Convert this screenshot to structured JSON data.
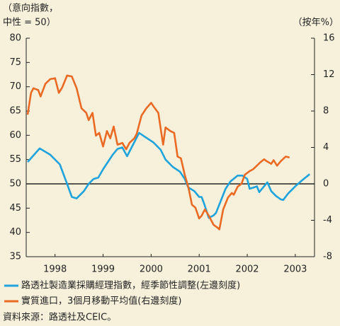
{
  "chart_data": {
    "type": "line",
    "y_label": [
      "（意向指數，",
      "中性 = 50）"
    ],
    "y2_label": "（按年%）",
    "xlim": [
      1997.9,
      2003.9
    ],
    "xticks": [
      {
        "value": 1998.5,
        "label": "1998"
      },
      {
        "value": 1999.5,
        "label": "1999"
      },
      {
        "value": 2000.5,
        "label": "2000"
      },
      {
        "value": 2001.5,
        "label": "2001"
      },
      {
        "value": 2002.5,
        "label": "2002"
      },
      {
        "value": 2003.5,
        "label": "2003"
      }
    ],
    "ylim": [
      35,
      80
    ],
    "yticks": [
      35,
      40,
      45,
      50,
      55,
      60,
      65,
      70,
      75,
      80
    ],
    "y2lim": [
      -8,
      16
    ],
    "y2ticks": [
      -8,
      -4,
      0,
      4,
      8,
      12,
      16
    ],
    "reference_line": 50,
    "series": [
      {
        "name": "路透社製造業採購經理指數，經季節性調整(左邊刻度)",
        "color": "#1fa3dc",
        "x": [
          1997.93,
          1998.18,
          1998.4,
          1998.6,
          1998.75,
          1998.85,
          1998.95,
          1999.1,
          1999.2,
          1999.3,
          1999.4,
          1999.5,
          1999.6,
          1999.7,
          1999.8,
          1999.9,
          2000.0,
          2000.25,
          2000.4,
          2000.55,
          2000.7,
          2000.8,
          2000.95,
          2001.1,
          2001.2,
          2001.27,
          2001.4,
          2001.5,
          2001.55,
          2001.6,
          2001.7,
          2001.8,
          2001.85,
          2001.95,
          2002.05,
          2002.15,
          2002.3,
          2002.4,
          2002.5,
          2002.55,
          2002.65,
          2002.7,
          2002.75,
          2002.85,
          2002.92,
          2003.0,
          2003.1,
          2003.2,
          2003.25,
          2003.35,
          2003.5,
          2003.65,
          2003.8
        ],
        "values": [
          54.5,
          57.3,
          56,
          54,
          50,
          47.3,
          47,
          48.5,
          50,
          51,
          51.3,
          53,
          54.5,
          56,
          57.2,
          57.5,
          55.7,
          60.5,
          59.5,
          58.5,
          57,
          55,
          53.5,
          52.5,
          51,
          49.3,
          48.5,
          47.3,
          47.3,
          46,
          43,
          43.5,
          44,
          46.5,
          49,
          50.5,
          51.7,
          51.7,
          51,
          49,
          49.3,
          49.5,
          48.3,
          49.5,
          50.3,
          48.5,
          47.5,
          46.8,
          46.7,
          48,
          49.5,
          50.8,
          52
        ]
      },
      {
        "name": "實質進口，3個月移動平均值(右邊刻度)",
        "color": "#ea6a23",
        "axis": "y2",
        "x": [
          1997.93,
          1998.0,
          1998.05,
          1998.15,
          1998.2,
          1998.3,
          1998.4,
          1998.5,
          1998.58,
          1998.65,
          1998.75,
          1998.85,
          1998.95,
          1999.05,
          1999.15,
          1999.2,
          1999.28,
          1999.35,
          1999.42,
          1999.5,
          1999.58,
          1999.65,
          1999.72,
          1999.8,
          1999.9,
          1999.98,
          2000.05,
          2000.15,
          2000.2,
          2000.3,
          2000.4,
          2000.5,
          2000.55,
          2000.65,
          2000.75,
          2000.8,
          2000.9,
          2000.98,
          2001.05,
          2001.12,
          2001.2,
          2001.28,
          2001.35,
          2001.42,
          2001.5,
          2001.55,
          2001.62,
          2001.7,
          2001.8,
          2001.88,
          2001.92,
          2002.0,
          2002.1,
          2002.18,
          2002.22,
          2002.3,
          2002.38,
          2002.45,
          2002.55,
          2002.62,
          2002.7,
          2002.78,
          2002.85,
          2002.9,
          2003.0,
          2003.05,
          2003.12,
          2003.2,
          2003.3,
          2003.38
        ],
        "values": [
          7.6,
          10,
          10.5,
          10.3,
          9.6,
          11,
          11.5,
          11.6,
          10,
          10.6,
          11.9,
          11.8,
          10.5,
          8.3,
          7.8,
          7,
          7.8,
          5.3,
          5.6,
          4.1,
          5.8,
          5,
          6.3,
          4.3,
          4.5,
          3.8,
          4.5,
          5,
          5.5,
          7.5,
          8.3,
          8.9,
          8.5,
          7.8,
          4.3,
          6.2,
          5.8,
          5.6,
          3,
          2.8,
          1,
          -0.5,
          -2.3,
          -2.6,
          -3.8,
          -3.5,
          -2.8,
          -3.5,
          -4.5,
          -4.8,
          -5,
          -2.8,
          -1.5,
          -1,
          -1.2,
          -0.3,
          0,
          1,
          1.4,
          1.6,
          2,
          2.4,
          2.7,
          2.5,
          2.2,
          2.6,
          2,
          2.5,
          3,
          2.9
        ]
      }
    ],
    "source": "資料來源：路透社及CEIC。"
  }
}
